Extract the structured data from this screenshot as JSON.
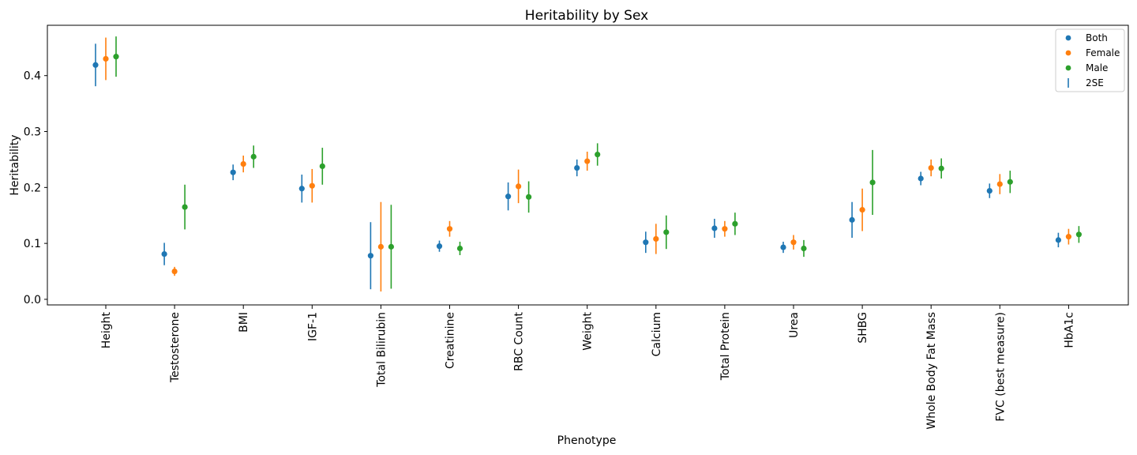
{
  "chart_data": {
    "type": "scatter",
    "title": "Heritability by Sex",
    "xlabel": "Phenotype",
    "ylabel": "Heritability",
    "ylim": [
      -0.01,
      0.49
    ],
    "yticks": [
      "0.0",
      "0.1",
      "0.2",
      "0.3",
      "0.4"
    ],
    "categories": [
      "Height",
      "Testosterone",
      "BMI",
      "IGF-1",
      "Total Bilirubin",
      "Creatinine",
      "RBC Count",
      "Weight",
      "Calcium",
      "Total Protein",
      "Urea",
      "SHBG",
      "Whole Body Fat Mass",
      "FVC (best measure)",
      "HbA1c"
    ],
    "series": [
      {
        "name": "Both",
        "color": "#1f77b4",
        "values": [
          0.419,
          0.081,
          0.227,
          0.198,
          0.078,
          0.095,
          0.184,
          0.235,
          0.102,
          0.127,
          0.093,
          0.142,
          0.216,
          0.194,
          0.106
        ],
        "err": [
          0.038,
          0.02,
          0.014,
          0.025,
          0.06,
          0.01,
          0.025,
          0.015,
          0.019,
          0.017,
          0.01,
          0.032,
          0.012,
          0.013,
          0.013
        ]
      },
      {
        "name": "Female",
        "color": "#ff7f0e",
        "values": [
          0.43,
          0.05,
          0.242,
          0.203,
          0.094,
          0.126,
          0.202,
          0.247,
          0.108,
          0.126,
          0.102,
          0.16,
          0.235,
          0.206,
          0.112
        ],
        "err": [
          0.038,
          0.008,
          0.015,
          0.03,
          0.08,
          0.014,
          0.03,
          0.017,
          0.027,
          0.014,
          0.013,
          0.038,
          0.015,
          0.018,
          0.014
        ]
      },
      {
        "name": "Male",
        "color": "#2ca02c",
        "values": [
          0.434,
          0.165,
          0.255,
          0.238,
          0.094,
          0.091,
          0.183,
          0.259,
          0.12,
          0.135,
          0.091,
          0.209,
          0.234,
          0.21,
          0.116
        ],
        "err": [
          0.036,
          0.04,
          0.02,
          0.033,
          0.075,
          0.012,
          0.028,
          0.02,
          0.03,
          0.02,
          0.015,
          0.058,
          0.018,
          0.02,
          0.015
        ]
      }
    ],
    "error_label": "2SE",
    "legend_position": "top-right",
    "grid": false
  }
}
